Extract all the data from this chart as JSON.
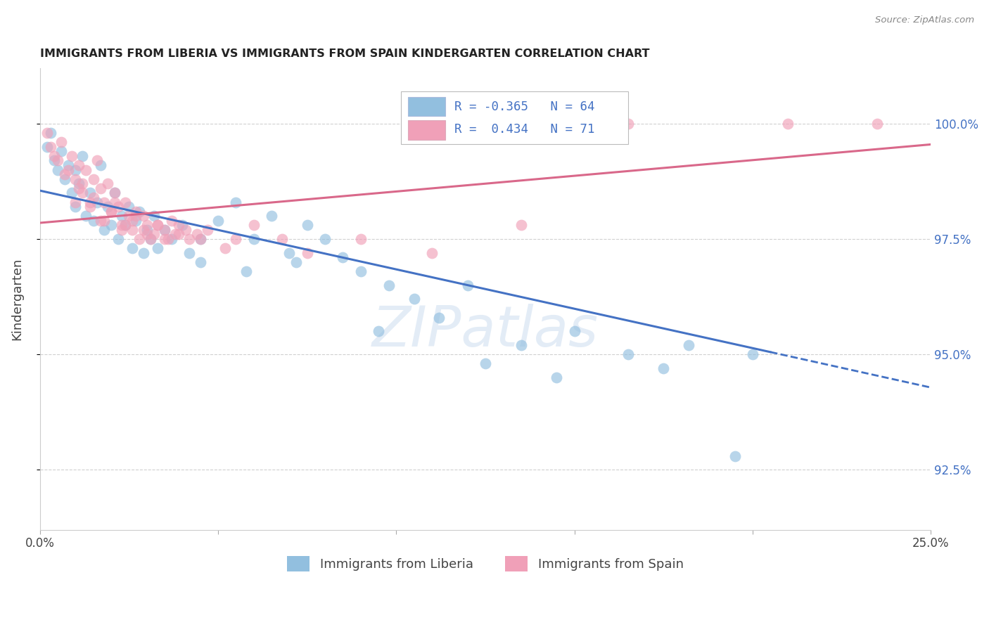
{
  "title": "IMMIGRANTS FROM LIBERIA VS IMMIGRANTS FROM SPAIN KINDERGARTEN CORRELATION CHART",
  "source": "Source: ZipAtlas.com",
  "ylabel": "Kindergarten",
  "xlim": [
    0.0,
    25.0
  ],
  "ylim": [
    91.2,
    101.2
  ],
  "yticks": [
    92.5,
    95.0,
    97.5,
    100.0
  ],
  "xticks": [
    0.0,
    5.0,
    10.0,
    15.0,
    20.0,
    25.0
  ],
  "ytick_labels": [
    "92.5%",
    "95.0%",
    "97.5%",
    "100.0%"
  ],
  "liberia_color": "#92bfdf",
  "spain_color": "#f0a0b8",
  "liberia_line_color": "#4472c4",
  "spain_line_color": "#d9688a",
  "R_liberia": -0.365,
  "N_liberia": 64,
  "R_spain": 0.434,
  "N_spain": 71,
  "background_color": "#ffffff",
  "grid_color": "#d0d0d0",
  "liberia_line_x0": 0.0,
  "liberia_line_y0": 98.55,
  "liberia_line_x1": 20.5,
  "liberia_line_y1": 95.05,
  "spain_line_x0": 0.0,
  "spain_line_y0": 97.85,
  "spain_line_x1": 25.0,
  "spain_line_y1": 99.55,
  "liberia_points_x": [
    0.2,
    0.3,
    0.4,
    0.5,
    0.6,
    0.7,
    0.8,
    0.9,
    1.0,
    1.0,
    1.1,
    1.2,
    1.3,
    1.4,
    1.5,
    1.6,
    1.7,
    1.8,
    1.9,
    2.0,
    2.1,
    2.2,
    2.3,
    2.4,
    2.5,
    2.6,
    2.7,
    2.8,
    2.9,
    3.0,
    3.1,
    3.2,
    3.3,
    3.5,
    3.7,
    4.0,
    4.2,
    4.5,
    5.0,
    5.5,
    6.0,
    6.5,
    7.0,
    7.5,
    8.0,
    8.5,
    9.0,
    9.8,
    10.5,
    11.2,
    12.0,
    13.5,
    15.0,
    16.5,
    18.2,
    20.0,
    4.5,
    5.8,
    7.2,
    9.5,
    12.5,
    14.5,
    17.5,
    19.5
  ],
  "liberia_points_y": [
    99.5,
    99.8,
    99.2,
    99.0,
    99.4,
    98.8,
    99.1,
    98.5,
    98.2,
    99.0,
    98.7,
    99.3,
    98.0,
    98.5,
    97.9,
    98.3,
    99.1,
    97.7,
    98.2,
    97.8,
    98.5,
    97.5,
    98.0,
    97.8,
    98.2,
    97.3,
    97.9,
    98.1,
    97.2,
    97.7,
    97.5,
    98.0,
    97.3,
    97.7,
    97.5,
    97.8,
    97.2,
    97.5,
    97.9,
    98.3,
    97.5,
    98.0,
    97.2,
    97.8,
    97.5,
    97.1,
    96.8,
    96.5,
    96.2,
    95.8,
    96.5,
    95.2,
    95.5,
    95.0,
    95.2,
    95.0,
    97.0,
    96.8,
    97.0,
    95.5,
    94.8,
    94.5,
    94.7,
    92.8
  ],
  "spain_points_x": [
    0.2,
    0.3,
    0.5,
    0.6,
    0.8,
    0.9,
    1.0,
    1.1,
    1.2,
    1.3,
    1.4,
    1.5,
    1.6,
    1.7,
    1.8,
    1.9,
    2.0,
    2.1,
    2.2,
    2.3,
    2.4,
    2.5,
    2.6,
    2.7,
    2.8,
    2.9,
    3.0,
    3.1,
    3.3,
    3.5,
    3.7,
    3.9,
    4.2,
    4.5,
    5.2,
    6.0,
    6.8,
    7.5,
    9.0,
    11.0,
    13.5,
    5.5,
    1.0,
    1.2,
    1.5,
    1.8,
    2.1,
    2.4,
    2.7,
    3.0,
    3.3,
    3.6,
    3.9,
    0.4,
    0.7,
    1.1,
    1.4,
    1.7,
    2.0,
    2.3,
    2.6,
    2.9,
    3.2,
    3.5,
    3.8,
    4.1,
    4.4,
    4.7,
    16.5,
    21.0,
    23.5
  ],
  "spain_points_y": [
    99.8,
    99.5,
    99.2,
    99.6,
    99.0,
    99.3,
    98.8,
    99.1,
    98.5,
    99.0,
    98.3,
    98.8,
    99.2,
    98.6,
    98.3,
    98.7,
    98.1,
    98.5,
    98.2,
    97.8,
    98.3,
    98.0,
    97.7,
    98.1,
    97.5,
    98.0,
    97.8,
    97.5,
    97.8,
    97.5,
    97.9,
    97.6,
    97.5,
    97.5,
    97.3,
    97.8,
    97.5,
    97.2,
    97.5,
    97.2,
    97.8,
    97.5,
    98.3,
    98.7,
    98.4,
    97.9,
    98.3,
    97.8,
    98.0,
    97.6,
    97.8,
    97.5,
    97.8,
    99.3,
    98.9,
    98.6,
    98.2,
    97.9,
    98.1,
    97.7,
    97.9,
    97.7,
    97.6,
    97.7,
    97.6,
    97.7,
    97.6,
    97.7,
    100.0,
    100.0,
    100.0
  ]
}
